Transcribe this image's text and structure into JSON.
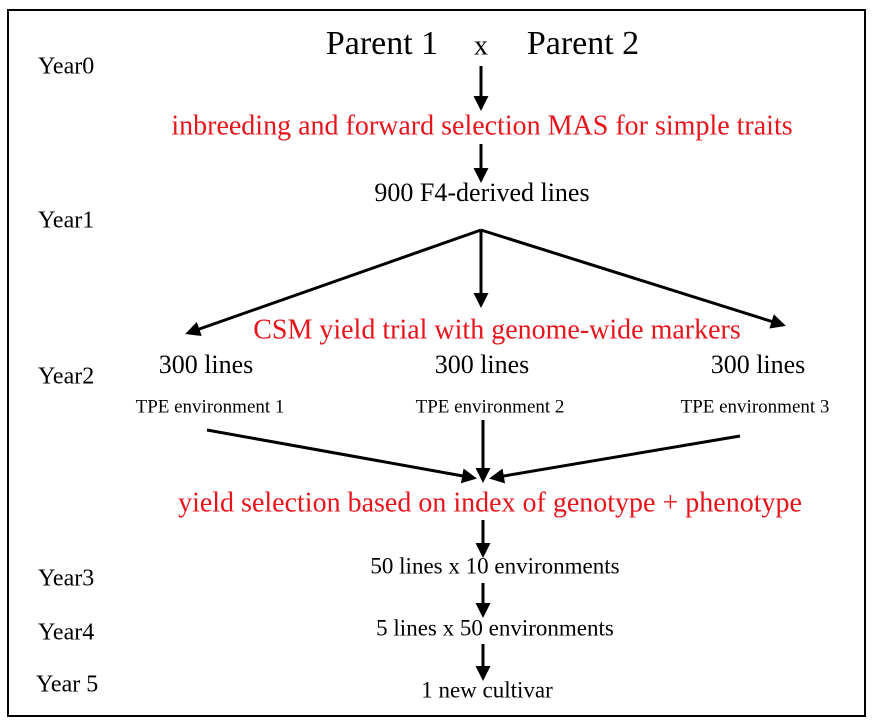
{
  "years": [
    "Year0",
    "Year1",
    "Year2",
    "Year3",
    "Year4",
    "Year 5"
  ],
  "parents": [
    "Parent 1",
    "Parent 2"
  ],
  "cross": "x",
  "steps": [
    "inbreeding and forward selection MAS for simple traits",
    "CSM yield trial with genome-wide markers",
    "yield selection based on index of genotype + phenotype"
  ],
  "nodes": [
    "900 F4-derived lines",
    "50 lines x 10 environments",
    "5 lines x 50 environments",
    "1 new cultivar"
  ],
  "branches": [
    {
      "lines": "300 lines",
      "environment": "TPE environment 1"
    },
    {
      "lines": "300 lines",
      "environment": "TPE environment 2"
    },
    {
      "lines": "300 lines",
      "environment": "TPE environment 3"
    }
  ]
}
